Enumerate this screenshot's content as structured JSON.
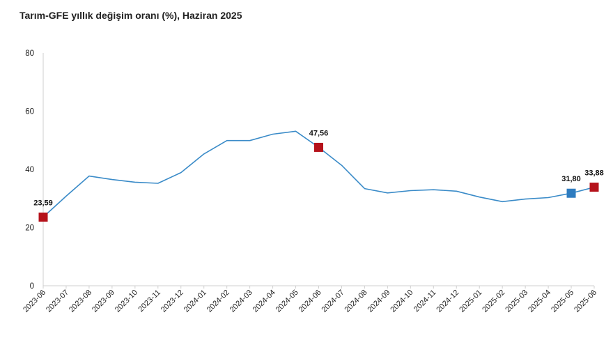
{
  "title": "Tarım-GFE yıllık değişim oranı (%), Haziran 2025",
  "chart_data": {
    "type": "line",
    "title": "Tarım-GFE yıllık değişim oranı (%), Haziran 2025",
    "xlabel": "",
    "ylabel": "",
    "ylim": [
      0,
      80
    ],
    "yticks": [
      0,
      20,
      40,
      60,
      80
    ],
    "grid": false,
    "legend": "none",
    "categories": [
      "2023-06",
      "2023-07",
      "2023-08",
      "2023-09",
      "2023-10",
      "2023-11",
      "2023-12",
      "2024-01",
      "2024-02",
      "2024-03",
      "2024-04",
      "2024-05",
      "2024-06",
      "2024-07",
      "2024-08",
      "2024-09",
      "2024-10",
      "2024-11",
      "2024-12",
      "2025-01",
      "2025-02",
      "2025-03",
      "2025-04",
      "2025-05",
      "2025-06"
    ],
    "series": [
      {
        "values": [
          23.59,
          30.8,
          37.7,
          36.5,
          35.6,
          35.2,
          38.9,
          45.3,
          49.9,
          49.9,
          52.1,
          53.1,
          47.56,
          41.4,
          33.4,
          31.9,
          32.7,
          33.0,
          32.5,
          30.5,
          28.9,
          29.8,
          30.3,
          31.8,
          33.88
        ],
        "color": "#3a8bc8"
      }
    ],
    "highlights": [
      {
        "index": 0,
        "label": "23,59",
        "color": "#b5121b"
      },
      {
        "index": 12,
        "label": "47,56",
        "color": "#b5121b"
      },
      {
        "index": 23,
        "label": "31,80",
        "color": "#2e7cc0"
      },
      {
        "index": 24,
        "label": "33,88",
        "color": "#b5121b"
      }
    ]
  }
}
